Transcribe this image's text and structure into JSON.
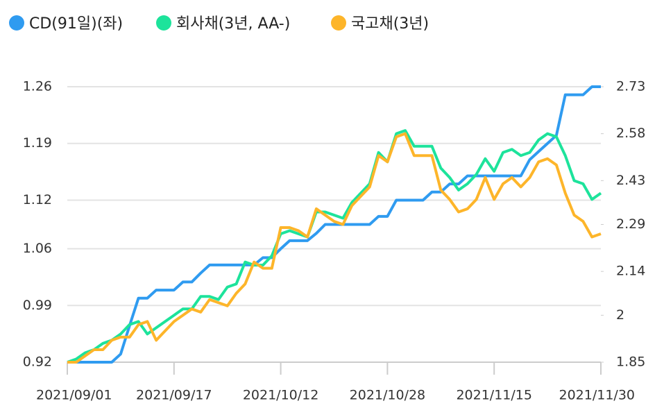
{
  "chart_data": {
    "type": "line",
    "categories": [
      "2021/09/01",
      null,
      null,
      null,
      null,
      null,
      null,
      null,
      null,
      null,
      null,
      null,
      "2021/09/17",
      null,
      null,
      null,
      null,
      null,
      null,
      null,
      null,
      null,
      null,
      null,
      "2021/10/12",
      null,
      null,
      null,
      null,
      null,
      null,
      null,
      null,
      null,
      null,
      null,
      "2021/10/28",
      null,
      null,
      null,
      null,
      null,
      null,
      null,
      null,
      null,
      null,
      null,
      "2021/11/15",
      null,
      null,
      null,
      null,
      null,
      null,
      null,
      null,
      null,
      null,
      null,
      "2021/11/30"
    ],
    "series": [
      {
        "name": "CD(91일)(좌)",
        "color": "#2f9bf0",
        "axis": "y",
        "values": [
          0.92,
          0.92,
          0.92,
          0.92,
          0.92,
          0.92,
          0.93,
          0.965,
          0.999,
          0.999,
          1.009,
          1.009,
          1.009,
          1.019,
          1.019,
          1.03,
          1.04,
          1.04,
          1.04,
          1.04,
          1.04,
          1.04,
          1.049,
          1.049,
          1.06,
          1.07,
          1.07,
          1.07,
          1.079,
          1.09,
          1.09,
          1.09,
          1.09,
          1.09,
          1.09,
          1.1,
          1.1,
          1.12,
          1.12,
          1.12,
          1.12,
          1.13,
          1.13,
          1.14,
          1.14,
          1.15,
          1.15,
          1.15,
          1.15,
          1.15,
          1.15,
          1.15,
          1.17,
          1.18,
          1.19,
          1.2,
          1.25,
          1.25,
          1.25,
          1.26,
          1.26
        ]
      },
      {
        "name": "회사채(3년, AA-)",
        "color": "#1de39b",
        "axis": "y2",
        "values": [
          1.85,
          1.86,
          1.88,
          1.89,
          1.91,
          1.92,
          1.94,
          1.97,
          1.98,
          1.94,
          1.96,
          1.98,
          2.0,
          2.02,
          2.02,
          2.06,
          2.06,
          2.05,
          2.09,
          2.1,
          2.17,
          2.16,
          2.16,
          2.19,
          2.26,
          2.27,
          2.26,
          2.25,
          2.33,
          2.33,
          2.32,
          2.31,
          2.36,
          2.39,
          2.42,
          2.52,
          2.49,
          2.58,
          2.59,
          2.54,
          2.54,
          2.54,
          2.47,
          2.44,
          2.4,
          2.42,
          2.45,
          2.5,
          2.46,
          2.52,
          2.53,
          2.51,
          2.52,
          2.56,
          2.58,
          2.57,
          2.51,
          2.43,
          2.42,
          2.37,
          2.39
        ]
      },
      {
        "name": "국고채(3년)",
        "color": "#fdb52a",
        "axis": "y2",
        "values": [
          1.85,
          1.85,
          1.87,
          1.89,
          1.89,
          1.92,
          1.93,
          1.93,
          1.97,
          1.98,
          1.92,
          1.95,
          1.98,
          2.0,
          2.02,
          2.01,
          2.05,
          2.04,
          2.03,
          2.07,
          2.1,
          2.17,
          2.15,
          2.15,
          2.28,
          2.28,
          2.27,
          2.25,
          2.34,
          2.32,
          2.3,
          2.29,
          2.35,
          2.38,
          2.41,
          2.51,
          2.49,
          2.57,
          2.58,
          2.51,
          2.51,
          2.51,
          2.4,
          2.37,
          2.33,
          2.34,
          2.37,
          2.44,
          2.37,
          2.42,
          2.44,
          2.41,
          2.44,
          2.49,
          2.5,
          2.48,
          2.39,
          2.32,
          2.3,
          2.25,
          2.26
        ]
      }
    ],
    "ylim": [
      0.92,
      1.26
    ],
    "yticks": [
      0.92,
      0.99,
      1.06,
      1.12,
      1.19,
      1.26
    ],
    "y2lim": [
      1.85,
      2.73
    ],
    "y2ticks": [
      1.85,
      2,
      2.14,
      2.29,
      2.43,
      2.58,
      2.73
    ],
    "grid": true
  }
}
